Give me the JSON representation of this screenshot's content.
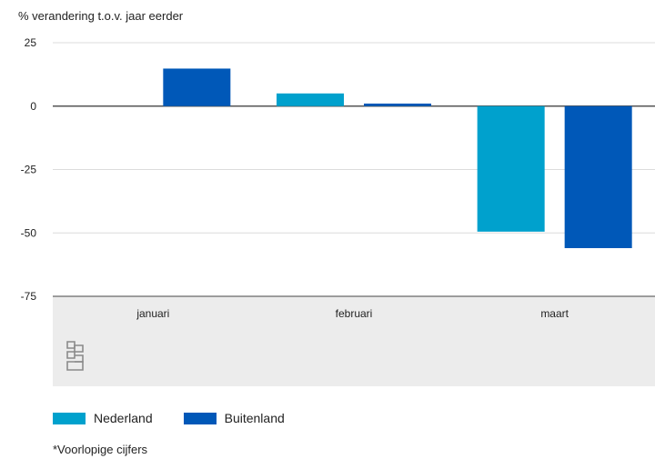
{
  "chart_data": {
    "type": "bar",
    "ylabel": "% verandering t.o.v. jaar eerder",
    "categories": [
      "januari",
      "februari",
      "maart"
    ],
    "series": [
      {
        "name": "Nederland",
        "color": "#00A1CD",
        "values": [
          null,
          5,
          -49.5
        ]
      },
      {
        "name": "Buitenland",
        "color": "#0058B8",
        "values": [
          14.8,
          1,
          -56
        ]
      }
    ],
    "yticks": [
      25,
      0,
      -25,
      -50,
      -75
    ],
    "ylim": [
      -75,
      25
    ],
    "grid": true,
    "legend_position": "bottom-left"
  },
  "footnote": "*Voorlopige cijfers",
  "logo": "cbs-logo-icon"
}
